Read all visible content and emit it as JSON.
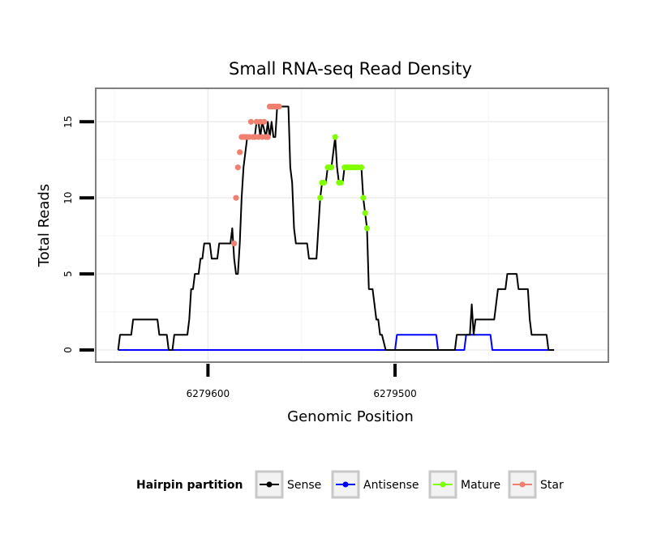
{
  "chart_data": {
    "type": "line",
    "title": "Small RNA-seq Read Density",
    "xlabel": "Genomic Position",
    "ylabel": "Total Reads",
    "xlim": [
      6279660,
      6279386
    ],
    "ylim": [
      -0.8,
      17.2
    ],
    "x_reversed": true,
    "x_ticks": [
      6279600,
      6279500
    ],
    "x_tick_labels": [
      "6279600",
      "6279500"
    ],
    "y_ticks": [
      0,
      5,
      10,
      15
    ],
    "y_tick_labels": [
      "0",
      "5",
      "10",
      "15"
    ],
    "grid": true,
    "legend": {
      "title": "Hairpin partition",
      "position": "bottom",
      "entries": [
        {
          "label": "Sense",
          "color": "#000000"
        },
        {
          "label": "Antisense",
          "color": "#0000ff"
        },
        {
          "label": "Mature",
          "color": "#7fff00"
        },
        {
          "label": "Star",
          "color": "#f08070"
        }
      ]
    },
    "series": [
      {
        "name": "Sense",
        "color": "#000000",
        "style": "line",
        "points": [
          [
            6279648,
            0
          ],
          [
            6279647,
            1
          ],
          [
            6279641,
            1
          ],
          [
            6279640,
            2
          ],
          [
            6279627,
            2
          ],
          [
            6279626,
            1
          ],
          [
            6279622,
            1
          ],
          [
            6279621,
            0
          ],
          [
            6279619,
            0
          ],
          [
            6279618,
            1
          ],
          [
            6279611,
            1
          ],
          [
            6279610,
            2
          ],
          [
            6279609,
            4
          ],
          [
            6279608,
            4
          ],
          [
            6279607,
            5
          ],
          [
            6279605,
            5
          ],
          [
            6279604,
            6
          ],
          [
            6279603,
            6
          ],
          [
            6279602,
            7
          ],
          [
            6279599,
            7
          ],
          [
            6279598,
            6
          ],
          [
            6279595,
            6
          ],
          [
            6279594,
            7
          ],
          [
            6279588,
            7
          ],
          [
            6279587,
            8
          ],
          [
            6279586,
            6
          ],
          [
            6279585,
            5
          ],
          [
            6279584,
            5
          ],
          [
            6279583,
            7
          ],
          [
            6279582,
            10
          ],
          [
            6279581,
            12
          ],
          [
            6279580,
            13
          ],
          [
            6279579,
            14
          ],
          [
            6279575,
            14
          ],
          [
            6279574,
            15
          ],
          [
            6279573,
            15
          ],
          [
            6279572,
            14
          ],
          [
            6279571,
            15
          ],
          [
            6279569,
            14
          ],
          [
            6279568,
            15
          ],
          [
            6279567,
            14
          ],
          [
            6279566,
            15
          ],
          [
            6279565,
            14
          ],
          [
            6279564,
            14
          ],
          [
            6279563,
            16
          ],
          [
            6279557,
            16
          ],
          [
            6279556,
            12
          ],
          [
            6279555,
            11
          ],
          [
            6279554,
            8
          ],
          [
            6279553,
            7
          ],
          [
            6279547,
            7
          ],
          [
            6279546,
            6
          ],
          [
            6279542,
            6
          ],
          [
            6279541,
            8
          ],
          [
            6279540,
            10
          ],
          [
            6279539,
            11
          ],
          [
            6279537,
            11
          ],
          [
            6279536,
            12
          ],
          [
            6279534,
            12
          ],
          [
            6279533,
            13
          ],
          [
            6279532,
            14
          ],
          [
            6279531,
            12
          ],
          [
            6279530,
            11
          ],
          [
            6279528,
            11
          ],
          [
            6279527,
            12
          ],
          [
            6279518,
            12
          ],
          [
            6279517,
            10
          ],
          [
            6279516,
            9
          ],
          [
            6279515,
            8
          ],
          [
            6279514,
            4
          ],
          [
            6279512,
            4
          ],
          [
            6279511,
            3
          ],
          [
            6279510,
            2
          ],
          [
            6279509,
            2
          ],
          [
            6279508,
            1
          ],
          [
            6279507,
            1
          ],
          [
            6279505,
            0
          ],
          [
            6279468,
            0
          ],
          [
            6279467,
            1
          ],
          [
            6279460,
            1
          ],
          [
            6279459,
            3
          ],
          [
            6279458,
            1
          ],
          [
            6279457,
            2
          ],
          [
            6279447,
            2
          ],
          [
            6279446,
            3
          ],
          [
            6279445,
            4
          ],
          [
            6279441,
            4
          ],
          [
            6279440,
            5
          ],
          [
            6279435,
            5
          ],
          [
            6279434,
            4
          ],
          [
            6279429,
            4
          ],
          [
            6279428,
            2
          ],
          [
            6279427,
            1
          ],
          [
            6279419,
            1
          ],
          [
            6279418,
            0
          ],
          [
            6279415,
            0
          ]
        ]
      },
      {
        "name": "Antisense",
        "color": "#0000ff",
        "style": "line",
        "points": [
          [
            6279648,
            0
          ],
          [
            6279500,
            0
          ],
          [
            6279499,
            1
          ],
          [
            6279478,
            1
          ],
          [
            6279477,
            0
          ],
          [
            6279463,
            0
          ],
          [
            6279462,
            1
          ],
          [
            6279449,
            1
          ],
          [
            6279448,
            0
          ],
          [
            6279418,
            0
          ]
        ]
      },
      {
        "name": "Mature",
        "color": "#7fff00",
        "style": "points",
        "points": [
          [
            6279540,
            10
          ],
          [
            6279539,
            11
          ],
          [
            6279538,
            11
          ],
          [
            6279536,
            12
          ],
          [
            6279535,
            12
          ],
          [
            6279534,
            12
          ],
          [
            6279532,
            14
          ],
          [
            6279530,
            11
          ],
          [
            6279529,
            11
          ],
          [
            6279527,
            12
          ],
          [
            6279526,
            12
          ],
          [
            6279525,
            12
          ],
          [
            6279524,
            12
          ],
          [
            6279523,
            12
          ],
          [
            6279522,
            12
          ],
          [
            6279521,
            12
          ],
          [
            6279520,
            12
          ],
          [
            6279518,
            12
          ],
          [
            6279517,
            10
          ],
          [
            6279516,
            9
          ],
          [
            6279515,
            8
          ]
        ]
      },
      {
        "name": "Star",
        "color": "#f08070",
        "style": "points",
        "points": [
          [
            6279586,
            7
          ],
          [
            6279585,
            10
          ],
          [
            6279584,
            12
          ],
          [
            6279583,
            13
          ],
          [
            6279582,
            14
          ],
          [
            6279581,
            14
          ],
          [
            6279580,
            14
          ],
          [
            6279579,
            14
          ],
          [
            6279578,
            14
          ],
          [
            6279577,
            15
          ],
          [
            6279576,
            14
          ],
          [
            6279575,
            14
          ],
          [
            6279574,
            15
          ],
          [
            6279573,
            14
          ],
          [
            6279572,
            15
          ],
          [
            6279571,
            14
          ],
          [
            6279570,
            15
          ],
          [
            6279569,
            14
          ],
          [
            6279568,
            14
          ],
          [
            6279567,
            16
          ],
          [
            6279566,
            16
          ],
          [
            6279565,
            16
          ],
          [
            6279564,
            16
          ],
          [
            6279563,
            16
          ],
          [
            6279562,
            16
          ]
        ]
      }
    ]
  }
}
